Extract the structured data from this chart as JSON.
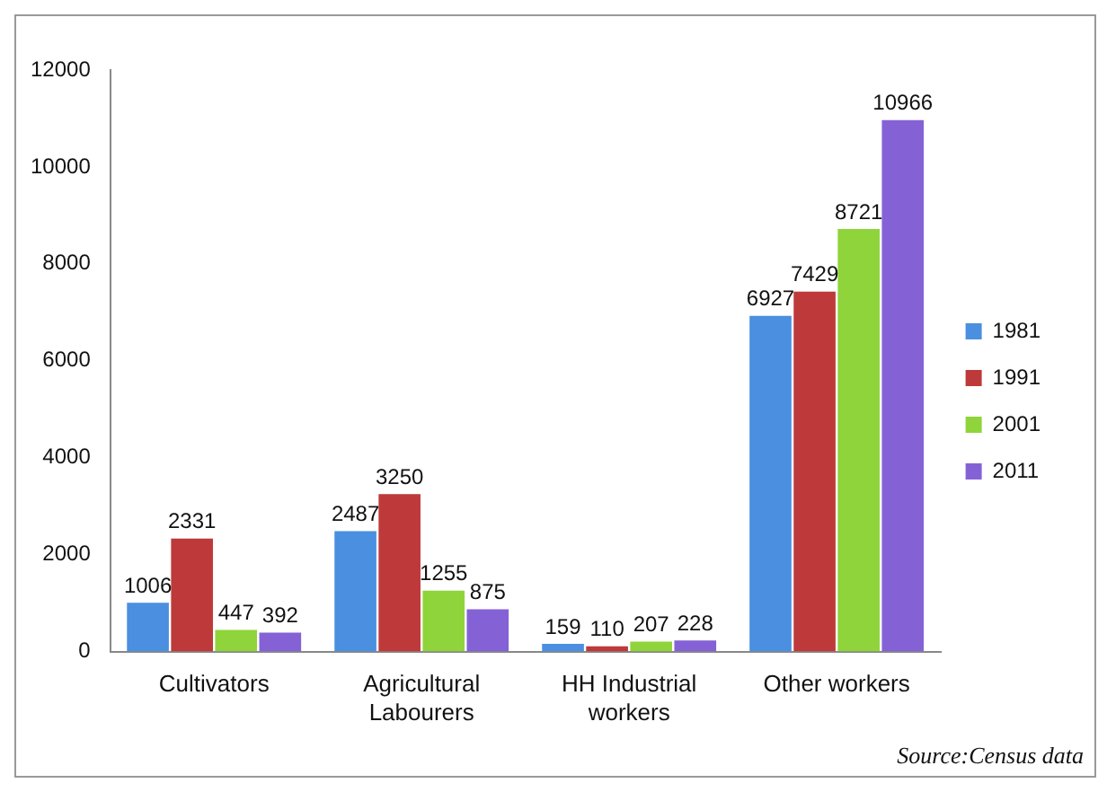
{
  "chart_data": {
    "type": "bar",
    "categories": [
      "Cultivators",
      "Agricultural Labourers",
      "HH Industrial workers",
      "Other workers"
    ],
    "series": [
      {
        "name": "1981",
        "color": "#4a8fe0",
        "values": [
          1006,
          2487,
          159,
          6927
        ]
      },
      {
        "name": "1991",
        "color": "#be3a3a",
        "values": [
          2331,
          3250,
          110,
          7429
        ]
      },
      {
        "name": "2001",
        "color": "#8fd43a",
        "values": [
          447,
          1255,
          207,
          8721
        ]
      },
      {
        "name": "2011",
        "color": "#8462d6",
        "values": [
          392,
          875,
          228,
          10966
        ]
      }
    ],
    "ylim": [
      0,
      12000
    ],
    "yticks": [
      0,
      2000,
      4000,
      6000,
      8000,
      10000,
      12000
    ],
    "grid": false,
    "legend": "right",
    "data_labels": true,
    "annotations": [
      "Source:Census data"
    ]
  }
}
